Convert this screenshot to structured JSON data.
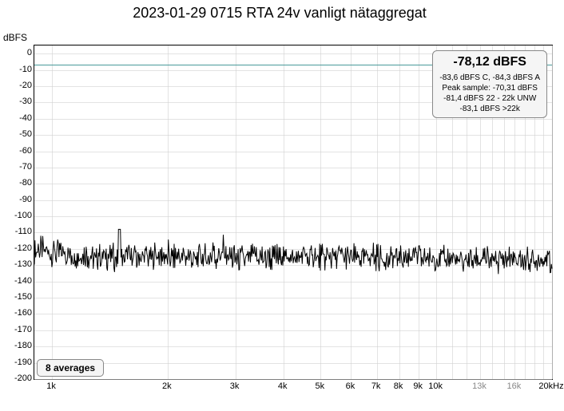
{
  "chart": {
    "title": "2023-01-29 0715 RTA 24v vanligt nätaggregat",
    "ylabel": "dBFS",
    "type": "line",
    "xscale": "log",
    "xlim_hz": [
      900,
      20000
    ],
    "ylim_dbfs": [
      -200,
      5
    ],
    "yticks": [
      0,
      -10,
      -20,
      -30,
      -40,
      -50,
      -60,
      -70,
      -80,
      -90,
      -100,
      -110,
      -120,
      -130,
      -140,
      -150,
      -160,
      -170,
      -180,
      -190,
      -200
    ],
    "xticks": [
      {
        "hz": 1000,
        "label": "1k",
        "major": true
      },
      {
        "hz": 2000,
        "label": "2k",
        "major": true
      },
      {
        "hz": 3000,
        "label": "3k",
        "major": true
      },
      {
        "hz": 4000,
        "label": "4k",
        "major": true
      },
      {
        "hz": 5000,
        "label": "5k",
        "major": true
      },
      {
        "hz": 6000,
        "label": "6k",
        "major": true
      },
      {
        "hz": 7000,
        "label": "7k",
        "major": true
      },
      {
        "hz": 8000,
        "label": "8k",
        "major": true
      },
      {
        "hz": 9000,
        "label": "9k",
        "major": true
      },
      {
        "hz": 10000,
        "label": "10k",
        "major": true
      },
      {
        "hz": 13000,
        "label": "13k",
        "gray": true
      },
      {
        "hz": 16000,
        "label": "16k",
        "gray": true
      },
      {
        "hz": 20000,
        "label": "20kHz",
        "major": true
      }
    ],
    "ref_line_dbfs": -7,
    "ref_line_color": "#4a9a9a",
    "trace_color": "#000000",
    "grid_color": "#d0d0d0",
    "bg_color": "#ffffff",
    "noise_floor_dbfs": -125,
    "noise_jitter_dbfs": 6,
    "spike_at_hz": 1500,
    "spike_level_dbfs": -108,
    "slope_start_dbfs": -120,
    "info_box": {
      "main": "-78,12 dBFS",
      "l1": "-83,6 dBFS C, -84,3 dBFS A",
      "l2": "Peak sample: -70,31 dBFS",
      "l3": "-81,4 dBFS 22 - 22k UNW",
      "l4": "-83,1 dBFS >22k"
    },
    "avg_box": "8 averages"
  }
}
